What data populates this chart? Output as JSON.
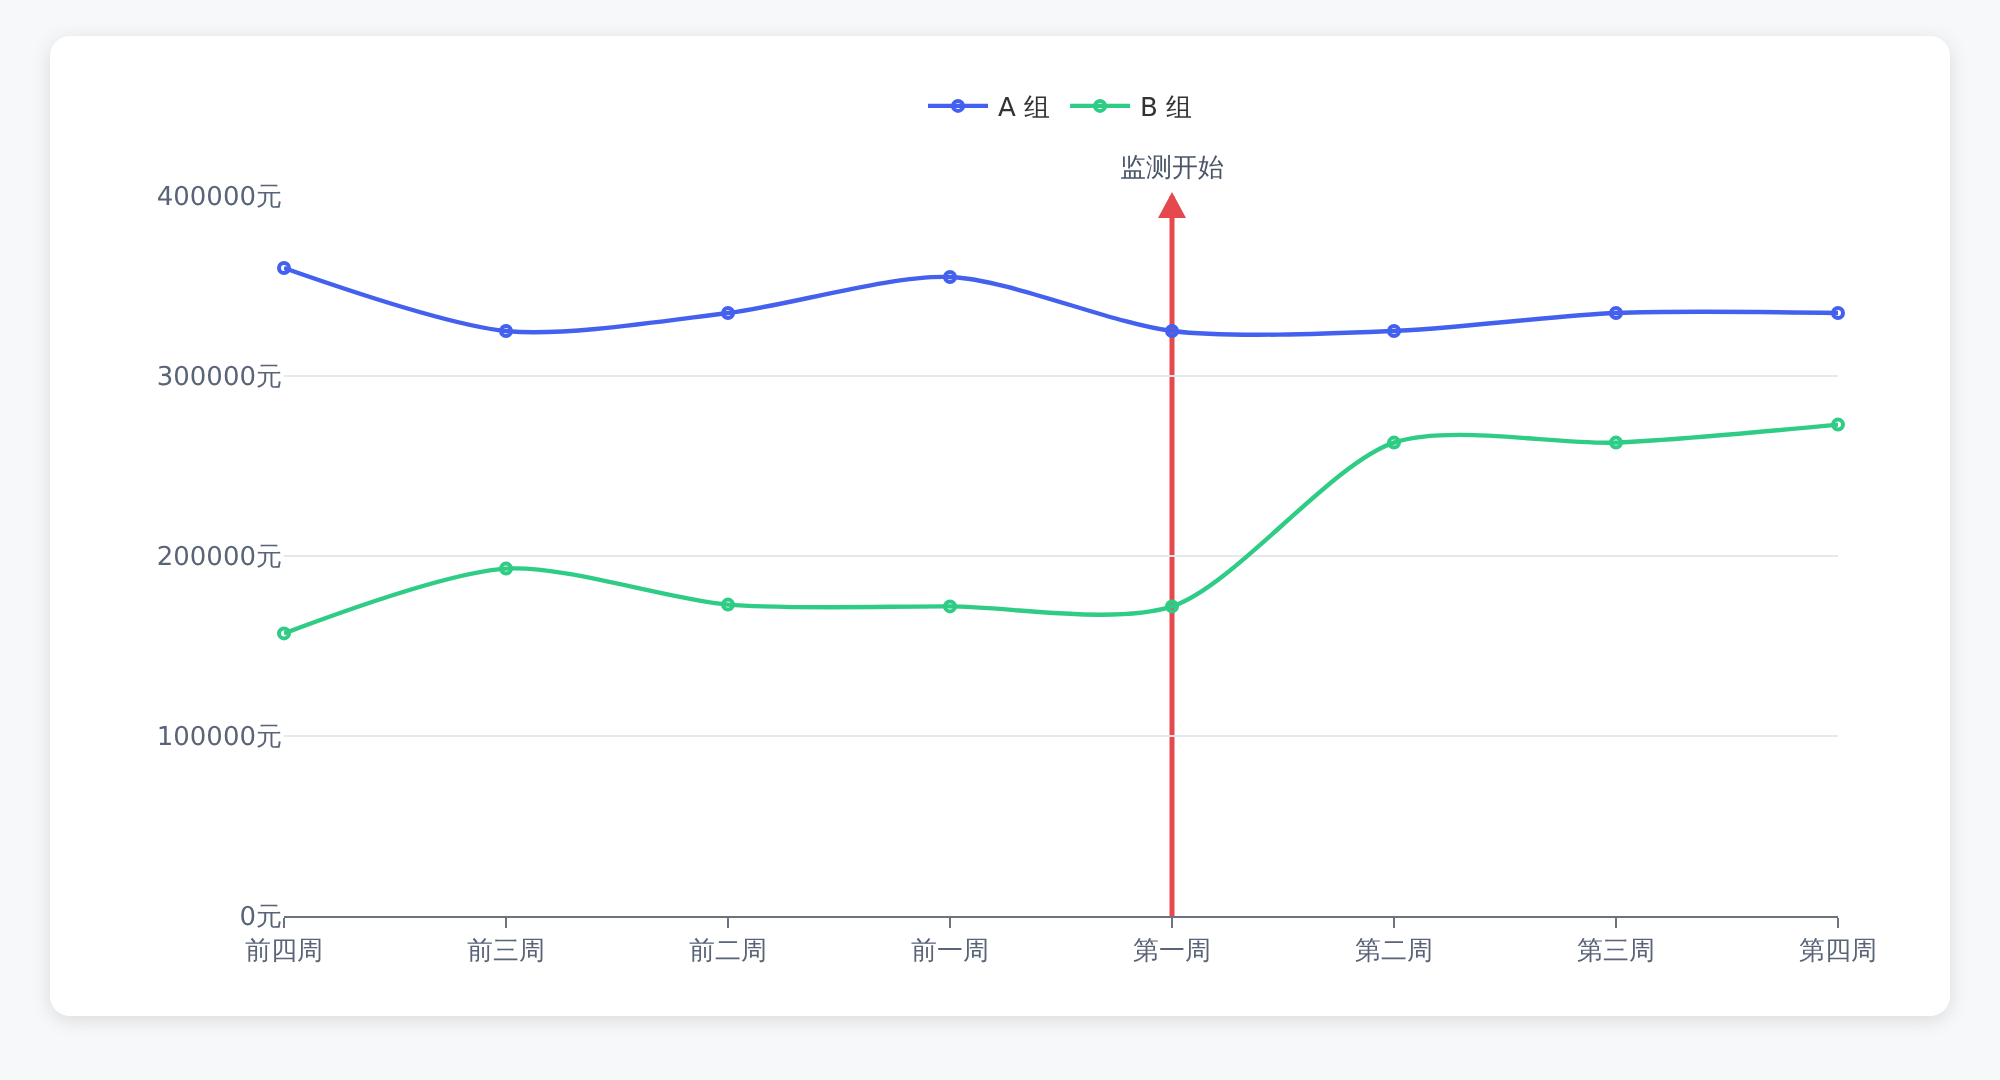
{
  "chart_data": {
    "type": "line",
    "categories": [
      "前四周",
      "前三周",
      "前二周",
      "前一周",
      "第一周",
      "第二周",
      "第三周",
      "第四周"
    ],
    "series": [
      {
        "name": "A 组",
        "color": "#4361ee",
        "values": [
          360000,
          325000,
          335000,
          355000,
          325000,
          325000,
          335000,
          335000
        ]
      },
      {
        "name": "B 组",
        "color": "#2ecc85",
        "values": [
          157000,
          193000,
          173000,
          172000,
          172000,
          263000,
          263000,
          273000
        ]
      }
    ],
    "ylim": [
      0,
      400000
    ],
    "yticks": [
      {
        "value": 0,
        "label": "0元"
      },
      {
        "value": 100000,
        "label": "100000元"
      },
      {
        "value": 200000,
        "label": "200000元"
      },
      {
        "value": 300000,
        "label": "300000元"
      },
      {
        "value": 400000,
        "label": "400000元"
      }
    ],
    "ref_lines": [
      {
        "axis": "x",
        "value": "第一周",
        "label": "监测开始",
        "color": "#e5484d"
      }
    ],
    "grid": "y",
    "legend": "top",
    "marker": "circle",
    "line_style": "solid"
  }
}
